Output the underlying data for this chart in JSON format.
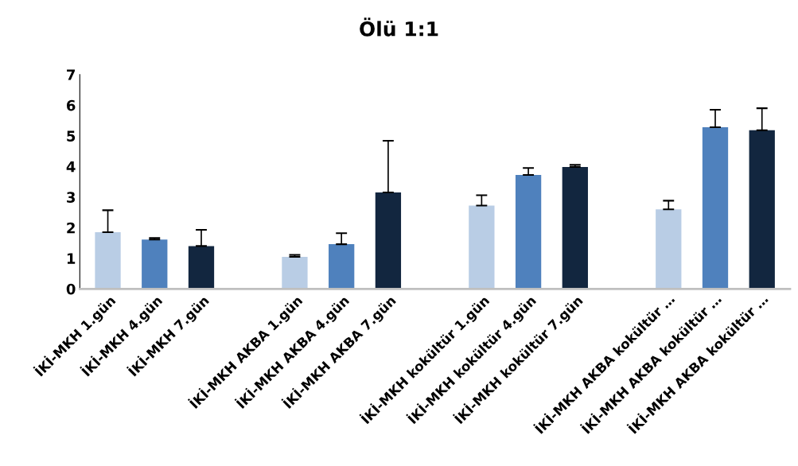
{
  "chart_data": {
    "type": "bar",
    "title": "Ölü 1:1",
    "categories": [
      "İKİ-MKH 1.gün",
      "İKİ-MKH 4.gün",
      "İKİ-MKH 7.gün",
      null,
      "İKİ-MKH AKBA 1.gün",
      "İKİ-MKH AKBA 4.gün",
      "İKİ-MKH AKBA 7.gün",
      null,
      "İKİ-MKH kokültür 1.gün",
      "İKİ-MKH kokültür 4.gün",
      "İKİ-MKH kokültür 7.gün",
      null,
      "İKİ-MKH AKBA kokültür …",
      "İKİ-MKH AKBA kokültür …",
      "İKİ-MKH AKBA kokültür …"
    ],
    "values": [
      1.85,
      1.61,
      1.4,
      null,
      1.05,
      1.46,
      3.15,
      null,
      2.72,
      3.72,
      3.98,
      null,
      2.6,
      5.28,
      5.18
    ],
    "errors": [
      [
        1.85,
        2.57
      ],
      [
        1.61,
        1.66
      ],
      [
        1.4,
        1.93
      ],
      null,
      [
        1.05,
        1.11
      ],
      [
        1.46,
        1.82
      ],
      [
        3.15,
        4.84
      ],
      null,
      [
        2.72,
        3.06
      ],
      [
        3.72,
        3.95
      ],
      [
        3.98,
        4.05
      ],
      null,
      [
        2.6,
        2.88
      ],
      [
        5.28,
        5.85
      ],
      [
        5.18,
        5.9
      ]
    ],
    "colors": [
      "#b9cde5",
      "#4f81bd",
      "#12263f",
      null,
      "#b9cde5",
      "#4f81bd",
      "#12263f",
      null,
      "#b9cde5",
      "#4f81bd",
      "#12263f",
      null,
      "#b9cde5",
      "#4f81bd",
      "#12263f"
    ],
    "ylim": [
      0,
      7
    ],
    "yticks": [
      0,
      1,
      2,
      3,
      4,
      5,
      6,
      7
    ],
    "grid": false,
    "legend": false
  }
}
